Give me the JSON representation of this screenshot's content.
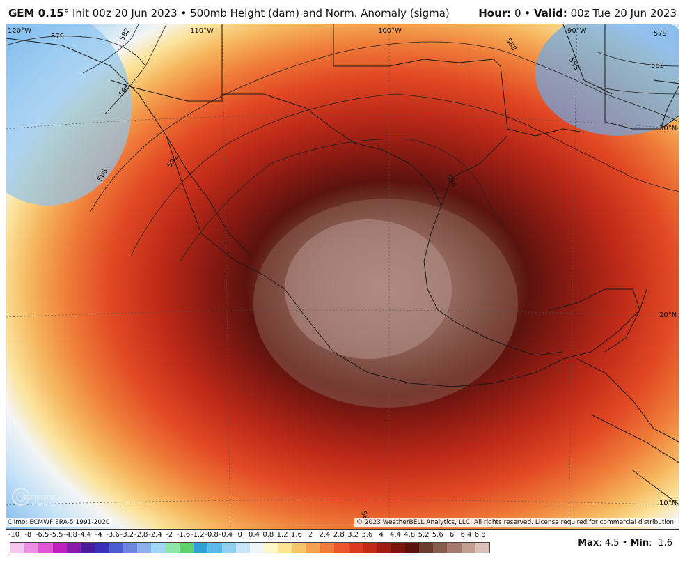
{
  "header": {
    "model": "GEM 0.15",
    "degree": "°",
    "init": "Init 00z 20 Jun 2023 • 500mb Height (dam) and Norm. Anomaly (sigma)",
    "hour_label": "Hour:",
    "hour_value": "0",
    "valid_label": "Valid:",
    "valid_value": "00z Tue 20 Jun 2023"
  },
  "map": {
    "lon_labels": [
      "120°W",
      "110°W",
      "100°W",
      "90°W"
    ],
    "lat_labels": [
      "30°N",
      "20°N",
      "10°N"
    ],
    "contour_labels": [
      "579",
      "582",
      "585",
      "588",
      "591",
      "594",
      "588",
      "585",
      "582",
      "579",
      "588"
    ]
  },
  "footer": {
    "climo": "Climo: ECMWF ERA-5 1991-2020",
    "copyright": "© 2023 WeatherBELL Analytics, LLC. All rights reserved. License required for commercial distribution.",
    "logo_text": "WEATHERBELL"
  },
  "legend": {
    "labels": [
      "-10",
      "-8",
      "-6.5",
      "-5.5",
      "-4.8",
      "-4.4",
      "-4",
      "-3.6",
      "-3.2",
      "-2.8",
      "-2.4",
      "-2",
      "-1.6",
      "-1.2",
      "-0.8",
      "-0.4",
      "0",
      "0.4",
      "0.8",
      "1.2",
      "1.6",
      "2",
      "2.4",
      "2.8",
      "3.2",
      "3.6",
      "4",
      "4.4",
      "4.8",
      "5.2",
      "5.6",
      "6",
      "6.4",
      "6.8"
    ],
    "colors": [
      "#f7c6f0",
      "#ee8fe4",
      "#e055d6",
      "#c21fbf",
      "#8a1aa8",
      "#4a1a9a",
      "#3a2fb8",
      "#4a5bd0",
      "#6f86e0",
      "#8fb0ef",
      "#9fd7f5",
      "#8ee7a6",
      "#5fd06a",
      "#2f9fd8",
      "#5ab8ea",
      "#8fd0f2",
      "#c6e6f8",
      "#eef6fb",
      "#fdf7c8",
      "#fbe38f",
      "#f8c46a",
      "#f4a150",
      "#ef7c3a",
      "#e9572b",
      "#dc3a1f",
      "#c32a17",
      "#a21c12",
      "#7d130d",
      "#5a120c",
      "#6d3a30",
      "#8a5a4f",
      "#a67a6e",
      "#c39c92",
      "#dcbfb7"
    ]
  },
  "maxmin": {
    "max_label": "Max",
    "max_value": "4.5",
    "min_label": "Min",
    "min_value": "-1.6"
  }
}
